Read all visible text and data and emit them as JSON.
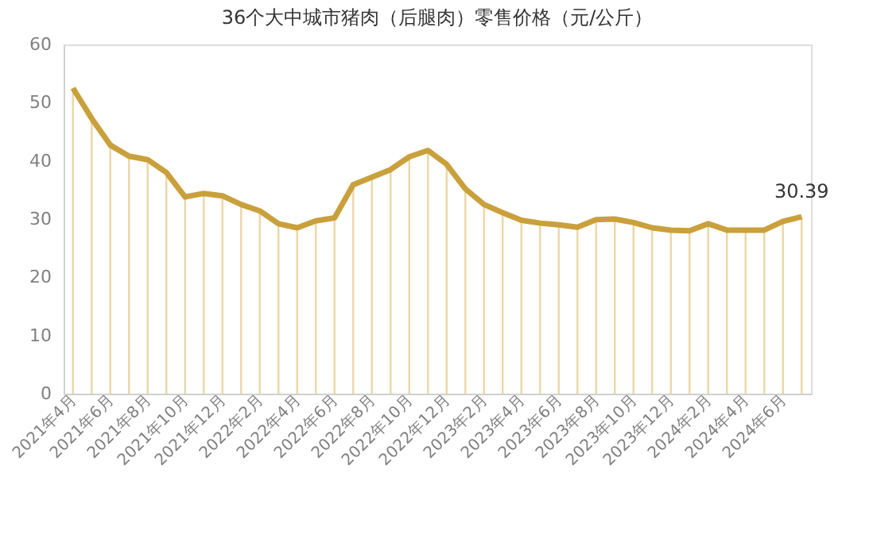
{
  "chart_data": {
    "type": "line",
    "title": "36个大中城市猪肉（后腿肉）零售价格（元/公斤）",
    "categories": [
      "2021年4月",
      null,
      "2021年6月",
      null,
      "2021年8月",
      null,
      "2021年10月",
      null,
      "2021年12月",
      null,
      "2022年2月",
      null,
      "2022年4月",
      null,
      "2022年6月",
      null,
      "2022年8月",
      null,
      "2022年10月",
      null,
      "2022年12月",
      null,
      "2023年2月",
      null,
      "2023年4月",
      null,
      "2023年6月",
      null,
      "2023年8月",
      null,
      "2023年10月",
      null,
      "2023年12月",
      null,
      "2024年2月",
      null,
      "2024年4月",
      null,
      "2024年6月",
      null
    ],
    "series": [
      {
        "type": "bar",
        "color": "#e6cc8f",
        "values": [
          52.5,
          47.3,
          42.7,
          40.8,
          40.2,
          38.0,
          33.8,
          34.4,
          34.0,
          32.5,
          31.4,
          29.2,
          28.5,
          29.7,
          30.2,
          35.9,
          37.2,
          38.5,
          40.7,
          41.8,
          39.4,
          35.2,
          32.5,
          31.1,
          29.8,
          29.3,
          29.0,
          28.6,
          29.9,
          30.0,
          29.4,
          28.5,
          28.1,
          28.0,
          29.2,
          28.1,
          28.1,
          28.1,
          29.6,
          30.4
        ]
      },
      {
        "color": "#c9a03c",
        "values": [
          52.5,
          47.3,
          42.7,
          40.8,
          40.2,
          38.0,
          33.8,
          34.4,
          34.0,
          32.5,
          31.4,
          29.2,
          28.5,
          29.7,
          30.2,
          35.9,
          37.2,
          38.5,
          40.7,
          41.8,
          39.4,
          35.2,
          32.5,
          31.1,
          29.8,
          29.3,
          29.0,
          28.6,
          29.9,
          30.0,
          29.4,
          28.5,
          28.1,
          28.0,
          29.2,
          28.1,
          28.1,
          28.1,
          29.6,
          30.39
        ],
        "value_labels": [
          null,
          null,
          null,
          null,
          null,
          null,
          null,
          null,
          null,
          null,
          null,
          null,
          null,
          null,
          null,
          null,
          null,
          null,
          null,
          null,
          null,
          null,
          null,
          null,
          null,
          null,
          null,
          null,
          null,
          null,
          null,
          null,
          null,
          null,
          null,
          null,
          null,
          null,
          null,
          "30.39"
        ]
      }
    ],
    "ylim": [
      0,
      60
    ],
    "yticks": [
      0,
      10,
      20,
      30,
      40,
      50,
      60
    ],
    "grid": false,
    "legend": false,
    "marker": "none",
    "line_style": "solid"
  }
}
